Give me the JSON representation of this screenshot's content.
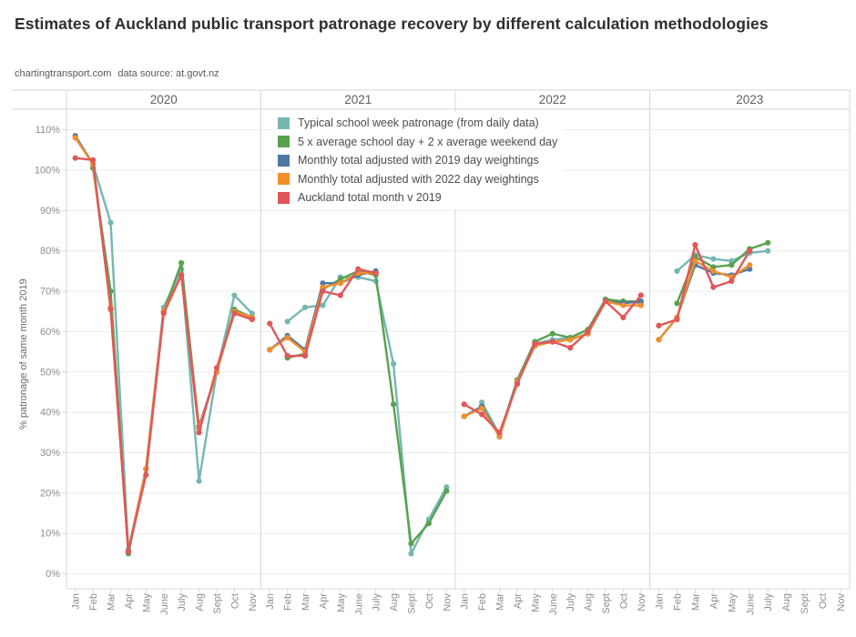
{
  "title": "Estimates of Auckland public transport patronage recovery by different calculation methodologies",
  "subtitle": {
    "site": "chartingtransport.com",
    "source": "data source: at.govt.nz"
  },
  "chart_data": {
    "type": "line",
    "title": "Estimates of Auckland public transport patronage recovery by different calculation methodologies",
    "xlabel": "",
    "ylabel": "% patronage of same month 2019",
    "ylim": [
      0,
      110
    ],
    "y_ticks": [
      0,
      10,
      20,
      30,
      40,
      50,
      60,
      70,
      80,
      90,
      100,
      110
    ],
    "y_tick_suffix": "%",
    "grid": true,
    "legend_position": "floating-top-second-panel",
    "panels": [
      "2020",
      "2021",
      "2022",
      "2023"
    ],
    "categories": [
      "Jan",
      "Feb",
      "Mar",
      "Apr",
      "May",
      "June",
      "July",
      "Aug",
      "Sept",
      "Oct",
      "Nov"
    ],
    "series": [
      {
        "name": "Typical school week patronage (from daily data)",
        "color": "#76B7B2",
        "values": {
          "2020": [
            null,
            101.5,
            87,
            6,
            26,
            66,
            75.5,
            23,
            50,
            69,
            64.5
          ],
          "2021": [
            null,
            62.5,
            66,
            66.5,
            73.5,
            73.5,
            72.5,
            52,
            5,
            13.5,
            21.5
          ],
          "2022": [
            null,
            42.5,
            34.5,
            48,
            57,
            58,
            58.5,
            60.5,
            68,
            67.5,
            67
          ],
          "2023": [
            null,
            75,
            79,
            78,
            77.5,
            79.5,
            80,
            null,
            null,
            null,
            null
          ]
        }
      },
      {
        "name": "5 x average school day + 2 x average weekend day",
        "color": "#59A14F",
        "values": {
          "2020": [
            null,
            100.5,
            70,
            5,
            26,
            65,
            77,
            36,
            50,
            65.5,
            63.5
          ],
          "2021": [
            null,
            53.5,
            54.5,
            70.5,
            73,
            75,
            74,
            42,
            7.5,
            12.5,
            20.5
          ],
          "2022": [
            null,
            41.5,
            34,
            48,
            57.5,
            59.5,
            58.5,
            60.5,
            68,
            67.5,
            67.5
          ],
          "2023": [
            null,
            67,
            78.5,
            76,
            76.5,
            80.5,
            82,
            null,
            null,
            null,
            null
          ]
        }
      },
      {
        "name": "Monthly total adjusted with 2019 day weightings",
        "color": "#4E79A7",
        "values": {
          "2020": [
            108.5,
            101.5,
            66,
            5.5,
            26,
            65,
            74,
            36.5,
            50,
            65,
            63.5
          ],
          "2021": [
            55.5,
            59,
            55.5,
            72,
            72,
            74,
            75,
            null,
            null,
            null,
            null
          ],
          "2022": [
            39,
            41.5,
            34,
            47.5,
            56.5,
            57.5,
            58,
            59.5,
            67.5,
            67,
            67.5
          ],
          "2023": [
            58,
            63.5,
            76.5,
            74.5,
            74,
            75.5,
            null,
            null,
            null,
            null,
            null
          ]
        }
      },
      {
        "name": "Monthly total adjusted with 2022 day weightings",
        "color": "#F28E2B",
        "values": {
          "2020": [
            108,
            101.5,
            66,
            5.5,
            26,
            65,
            74,
            36,
            50,
            65,
            63.5
          ],
          "2021": [
            55.5,
            58.5,
            55,
            71,
            72,
            74.5,
            74.5,
            null,
            null,
            null,
            null
          ],
          "2022": [
            39,
            41,
            34,
            47.5,
            56.5,
            57.5,
            58,
            59.5,
            67.5,
            66.5,
            66.5
          ],
          "2023": [
            58,
            63.5,
            77.5,
            75,
            73.5,
            76.5,
            null,
            null,
            null,
            null,
            null
          ]
        }
      },
      {
        "name": "Auckland total month v 2019",
        "color": "#E15759",
        "values": {
          "2020": [
            103,
            102.5,
            65.5,
            5.5,
            24.5,
            64.5,
            74,
            35,
            51,
            64.5,
            63
          ],
          "2021": [
            62,
            54,
            54,
            70,
            69,
            75.5,
            74.5,
            null,
            null,
            null,
            null
          ],
          "2022": [
            42,
            39.5,
            35,
            47,
            57,
            57.5,
            56,
            60,
            67.5,
            63.5,
            69
          ],
          "2023": [
            61.5,
            63,
            81.5,
            71,
            72.5,
            80,
            null,
            null,
            null,
            null,
            null
          ]
        }
      }
    ]
  }
}
